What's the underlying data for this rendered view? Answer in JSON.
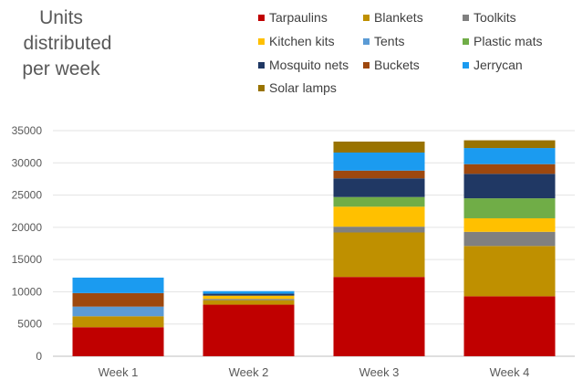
{
  "chart_data": {
    "type": "bar",
    "stacked": true,
    "title_lines": [
      "Units",
      "distributed",
      "per week"
    ],
    "xlabel": "",
    "ylabel": "",
    "ylim": [
      0,
      35000
    ],
    "yticks": [
      0,
      5000,
      10000,
      15000,
      20000,
      25000,
      30000,
      35000
    ],
    "grid": true,
    "legend_position": "top-right",
    "categories": [
      "Week 1",
      "Week 2",
      "Week 3",
      "Week 4"
    ],
    "series": [
      {
        "name": "Tarpaulins",
        "color": "#C00000",
        "values": [
          4500,
          8000,
          12300,
          9300
        ]
      },
      {
        "name": "Blankets",
        "color": "#BF9000",
        "values": [
          1700,
          700,
          6900,
          7800
        ]
      },
      {
        "name": "Toolkits",
        "color": "#808080",
        "values": [
          0,
          200,
          900,
          2200
        ]
      },
      {
        "name": "Kitchen kits",
        "color": "#FFC000",
        "values": [
          0,
          500,
          3100,
          2100
        ]
      },
      {
        "name": "Tents",
        "color": "#5B9BD5",
        "values": [
          1500,
          0,
          0,
          0
        ]
      },
      {
        "name": "Plastic mats",
        "color": "#70AD47",
        "values": [
          0,
          0,
          1500,
          3100
        ]
      },
      {
        "name": "Mosquito nets",
        "color": "#203864",
        "values": [
          0,
          300,
          2900,
          3800
        ]
      },
      {
        "name": "Buckets",
        "color": "#9E480E",
        "values": [
          2100,
          0,
          1200,
          1500
        ]
      },
      {
        "name": "Jerrycan",
        "color": "#1B9BF0",
        "values": [
          2400,
          400,
          2800,
          2500
        ]
      },
      {
        "name": "Solar lamps",
        "color": "#997300",
        "values": [
          0,
          0,
          1700,
          1200
        ]
      }
    ]
  }
}
